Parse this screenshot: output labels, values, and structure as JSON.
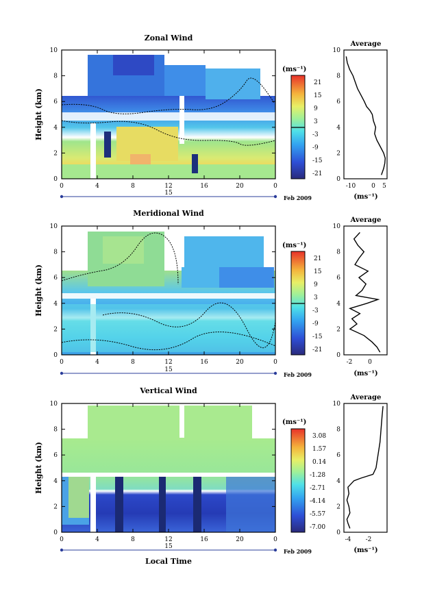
{
  "figure": {
    "date_label": "Feb 2009",
    "day_label": "15",
    "xlabel": "Local Time",
    "average_title": "Average",
    "unit": "(ms⁻¹)"
  },
  "chart_data": [
    {
      "type": "heatmap",
      "title": "Zonal Wind",
      "xlabel": "Local Time",
      "ylabel": "Height (km)",
      "xticks": [
        "0",
        "4",
        "8",
        "12",
        "16",
        "20",
        "0"
      ],
      "yticks": [
        "0",
        "2",
        "4",
        "6",
        "8",
        "10"
      ],
      "xlim": [
        0,
        24
      ],
      "ylim": [
        0,
        10
      ],
      "colorbar_unit": "(ms⁻¹)",
      "colorbar_ticks": [
        "21",
        "15",
        "9",
        "3",
        "-3",
        "-9",
        "-15",
        "-21"
      ],
      "profile": {
        "title": "Average",
        "xlabel": "(ms⁻¹)",
        "xticks": [
          "-10",
          "0",
          "5"
        ],
        "xlim": [
          -12,
          7
        ],
        "yticks": [
          "0",
          "2",
          "4",
          "6",
          "8",
          "10"
        ],
        "height": [
          0.3,
          0.8,
          1.2,
          1.6,
          2.0,
          2.5,
          3.0,
          3.5,
          4.0,
          4.5,
          5.0,
          5.3,
          5.6,
          6.0,
          6.5,
          7.0,
          7.5,
          8.0,
          8.5,
          9.0,
          9.5
        ],
        "value": [
          4.5,
          5.5,
          6.0,
          6.2,
          5.5,
          4.0,
          2.5,
          1.5,
          2.0,
          1.0,
          0.5,
          -0.5,
          -2.0,
          -3.0,
          -4.5,
          -6.0,
          -7.0,
          -8.0,
          -9.5,
          -10.5,
          -11.0
        ]
      }
    },
    {
      "type": "heatmap",
      "title": "Meridional Wind",
      "xlabel": "Local Time",
      "ylabel": "Height (km)",
      "xticks": [
        "0",
        "4",
        "8",
        "12",
        "16",
        "20",
        "0"
      ],
      "yticks": [
        "0",
        "2",
        "4",
        "6",
        "8",
        "10"
      ],
      "xlim": [
        0,
        24
      ],
      "ylim": [
        0,
        10
      ],
      "colorbar_unit": "(ms⁻¹)",
      "colorbar_ticks": [
        "21",
        "15",
        "9",
        "3",
        "-3",
        "-9",
        "-15",
        "-21"
      ],
      "profile": {
        "title": "Average",
        "xlabel": "(ms⁻¹)",
        "xticks": [
          "-2",
          "0"
        ],
        "xlim": [
          -2.8,
          1.5
        ],
        "yticks": [
          "0",
          "2",
          "4",
          "6",
          "8",
          "10"
        ],
        "height": [
          0.2,
          0.6,
          1.0,
          1.5,
          2.0,
          2.4,
          2.8,
          3.2,
          3.6,
          4.0,
          4.3,
          4.6,
          5.0,
          5.5,
          6.0,
          6.5,
          7.0,
          7.5,
          8.0,
          8.5,
          9.0,
          9.5
        ],
        "value": [
          0.8,
          0.5,
          0.0,
          -0.8,
          -2.2,
          -1.5,
          -2.0,
          -1.2,
          -2.2,
          -0.5,
          0.6,
          -1.6,
          -1.0,
          -0.6,
          -1.3,
          -0.4,
          -1.7,
          -1.3,
          -0.8,
          -1.4,
          -1.8,
          -1.2
        ]
      }
    },
    {
      "type": "heatmap",
      "title": "Vertical Wind",
      "xlabel": "Local Time",
      "ylabel": "Height (km)",
      "xticks": [
        "0",
        "4",
        "8",
        "12",
        "16",
        "20",
        "0"
      ],
      "yticks": [
        "0",
        "2",
        "4",
        "6",
        "8",
        "10"
      ],
      "xlim": [
        0,
        24
      ],
      "ylim": [
        0,
        10
      ],
      "colorbar_unit": "(ms⁻¹)",
      "colorbar_ticks": [
        "3.08",
        "1.57",
        "0.14",
        "-1.28",
        "-2.71",
        "-4.14",
        "-5.57",
        "-7.00"
      ],
      "profile": {
        "title": "Average",
        "xlabel": "(ms⁻¹)",
        "xticks": [
          "-4",
          "-2"
        ],
        "xlim": [
          -4.5,
          -0.2
        ],
        "yticks": [
          "0",
          "2",
          "4",
          "6",
          "8",
          "10"
        ],
        "height": [
          0.3,
          0.7,
          1.0,
          1.5,
          2.0,
          2.5,
          3.0,
          3.5,
          4.0,
          4.2,
          4.5,
          5.0,
          6.0,
          7.0,
          8.0,
          9.0,
          9.8
        ],
        "value": [
          -3.9,
          -4.1,
          -4.2,
          -3.9,
          -4.0,
          -4.2,
          -4.0,
          -4.1,
          -3.5,
          -2.8,
          -1.6,
          -1.3,
          -1.1,
          -0.9,
          -0.8,
          -0.7,
          -0.6
        ]
      }
    }
  ]
}
